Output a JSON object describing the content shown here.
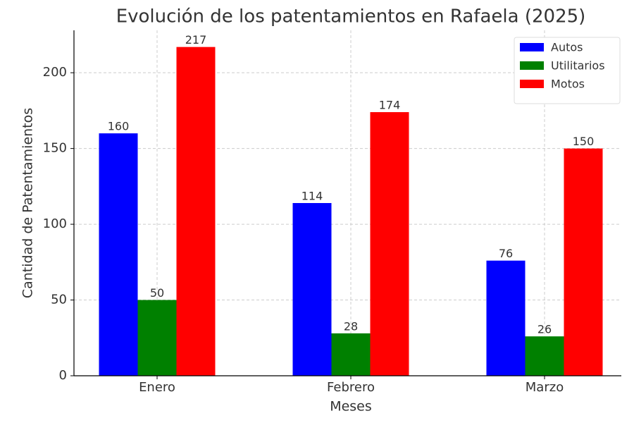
{
  "chart_data": {
    "type": "bar",
    "title": "Evolución de los patentamientos en Rafaela (2025)",
    "x_label": "Meses",
    "y_label": "Cantidad de Patentamientos",
    "categories": [
      "Enero",
      "Febrero",
      "Marzo"
    ],
    "series": [
      {
        "name": "Autos",
        "color": "#0000ff",
        "values": [
          160,
          114,
          76
        ]
      },
      {
        "name": "Utilitarios",
        "color": "#008000",
        "values": [
          50,
          28,
          26
        ]
      },
      {
        "name": "Motos",
        "color": "#ff0000",
        "values": [
          217,
          174,
          150
        ]
      }
    ],
    "ylim": [
      0,
      228
    ],
    "yticks": [
      0,
      50,
      100,
      150,
      200
    ],
    "grid": true,
    "legend": "upper right"
  }
}
